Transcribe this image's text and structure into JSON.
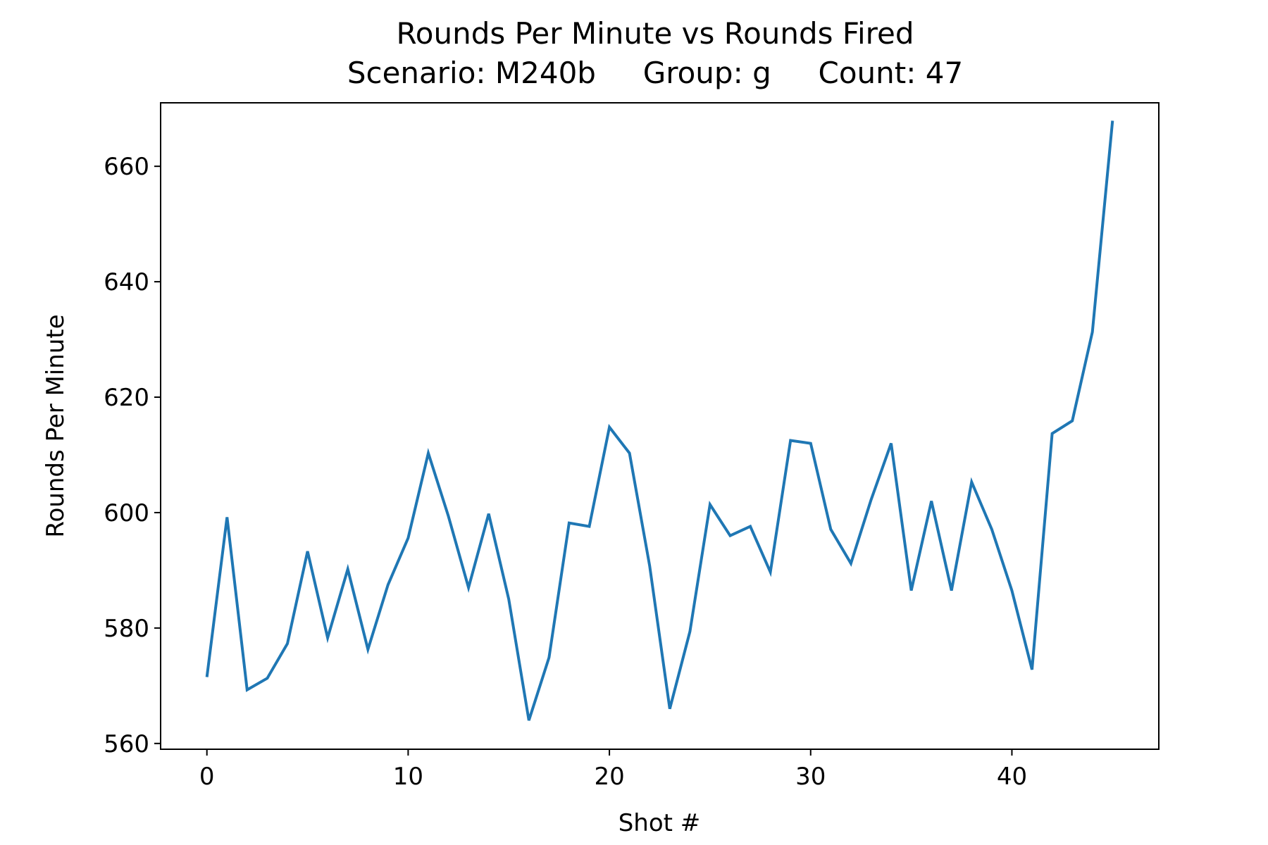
{
  "chart_data": {
    "type": "line",
    "title": "Rounds Per Minute vs Rounds Fired",
    "subtitle": "Scenario: M240b     Group: g     Count: 47",
    "xlabel": "Shot #",
    "ylabel": "Rounds Per Minute",
    "xlim": [
      -2.3,
      47.3
    ],
    "ylim": [
      559,
      671
    ],
    "xticks": [
      0,
      10,
      20,
      30,
      40
    ],
    "yticks": [
      560,
      580,
      600,
      620,
      640,
      660
    ],
    "grid": false,
    "series": [
      {
        "color": "#1f77b4",
        "x": [
          0,
          1,
          2,
          3,
          4,
          5,
          6,
          7,
          8,
          9,
          10,
          11,
          12,
          13,
          14,
          15,
          16,
          17,
          18,
          19,
          20,
          21,
          22,
          23,
          24,
          25,
          26,
          27,
          28,
          29,
          30,
          31,
          32,
          33,
          34,
          35,
          36,
          37,
          38,
          39,
          40,
          41,
          42,
          43,
          44,
          45
        ],
        "values": [
          571.5,
          599.2,
          569.3,
          571.3,
          577.3,
          593.3,
          578.3,
          590.2,
          576.3,
          587.5,
          595.6,
          610.3,
          599.4,
          587.0,
          599.8,
          585.0,
          564.0,
          574.9,
          598.2,
          597.6,
          614.8,
          610.3,
          590.8,
          566.0,
          579.4,
          601.4,
          596.0,
          597.6,
          589.7,
          612.5,
          612.0,
          597.1,
          591.2,
          602.2,
          612.0,
          586.5,
          602.0,
          586.5,
          605.3,
          597.1,
          586.5,
          572.8,
          613.7,
          615.9,
          631.3,
          667.9
        ]
      }
    ]
  }
}
